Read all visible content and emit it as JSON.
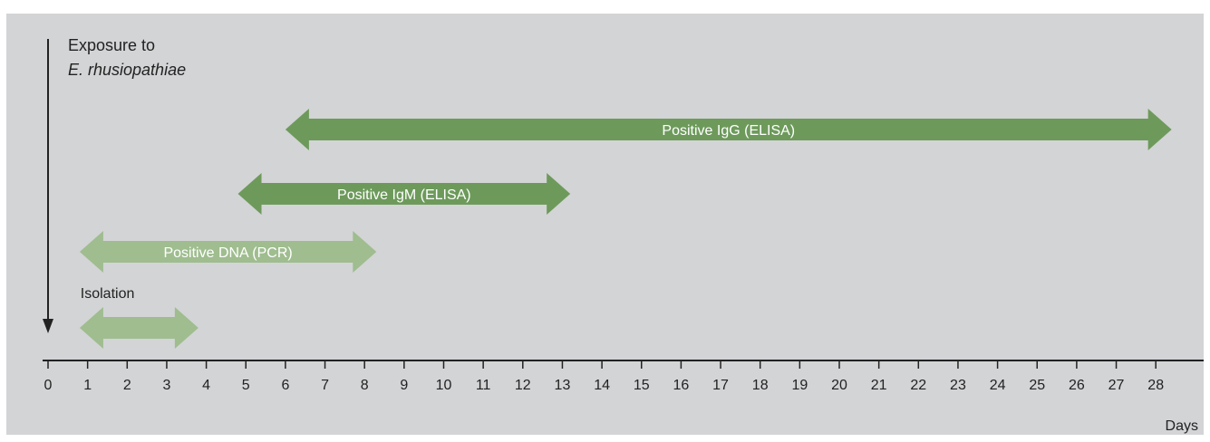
{
  "exposure": {
    "line1": "Exposure to",
    "line2": "E. rhusiopathiae"
  },
  "axis": {
    "unit_label": "Days",
    "ticks": [
      "0",
      "1",
      "2",
      "3",
      "4",
      "5",
      "6",
      "7",
      "8",
      "9",
      "10",
      "11",
      "12",
      "13",
      "14",
      "15",
      "16",
      "17",
      "18",
      "19",
      "20",
      "21",
      "22",
      "23",
      "24",
      "25",
      "26",
      "27",
      "28"
    ]
  },
  "colors": {
    "panel": "#d3d4d6",
    "dark_green": "#6d9a5b",
    "light_green": "#9fbd8f",
    "ink": "#222222"
  },
  "intervals": [
    {
      "id": "igg",
      "label": "Positive IgG (ELISA)",
      "start_day": 6.0,
      "end_day": 28.4,
      "color": "dark",
      "label_color": "white"
    },
    {
      "id": "igm",
      "label": "Positive IgM (ELISA)",
      "start_day": 4.8,
      "end_day": 13.2,
      "color": "dark",
      "label_color": "white"
    },
    {
      "id": "dna",
      "label": "Positive DNA (PCR)",
      "start_day": 0.8,
      "end_day": 8.3,
      "color": "light",
      "label_color": "white"
    },
    {
      "id": "isolation",
      "label": "Isolation",
      "start_day": 0.8,
      "end_day": 3.8,
      "color": "light",
      "label_color": "ink"
    }
  ]
}
